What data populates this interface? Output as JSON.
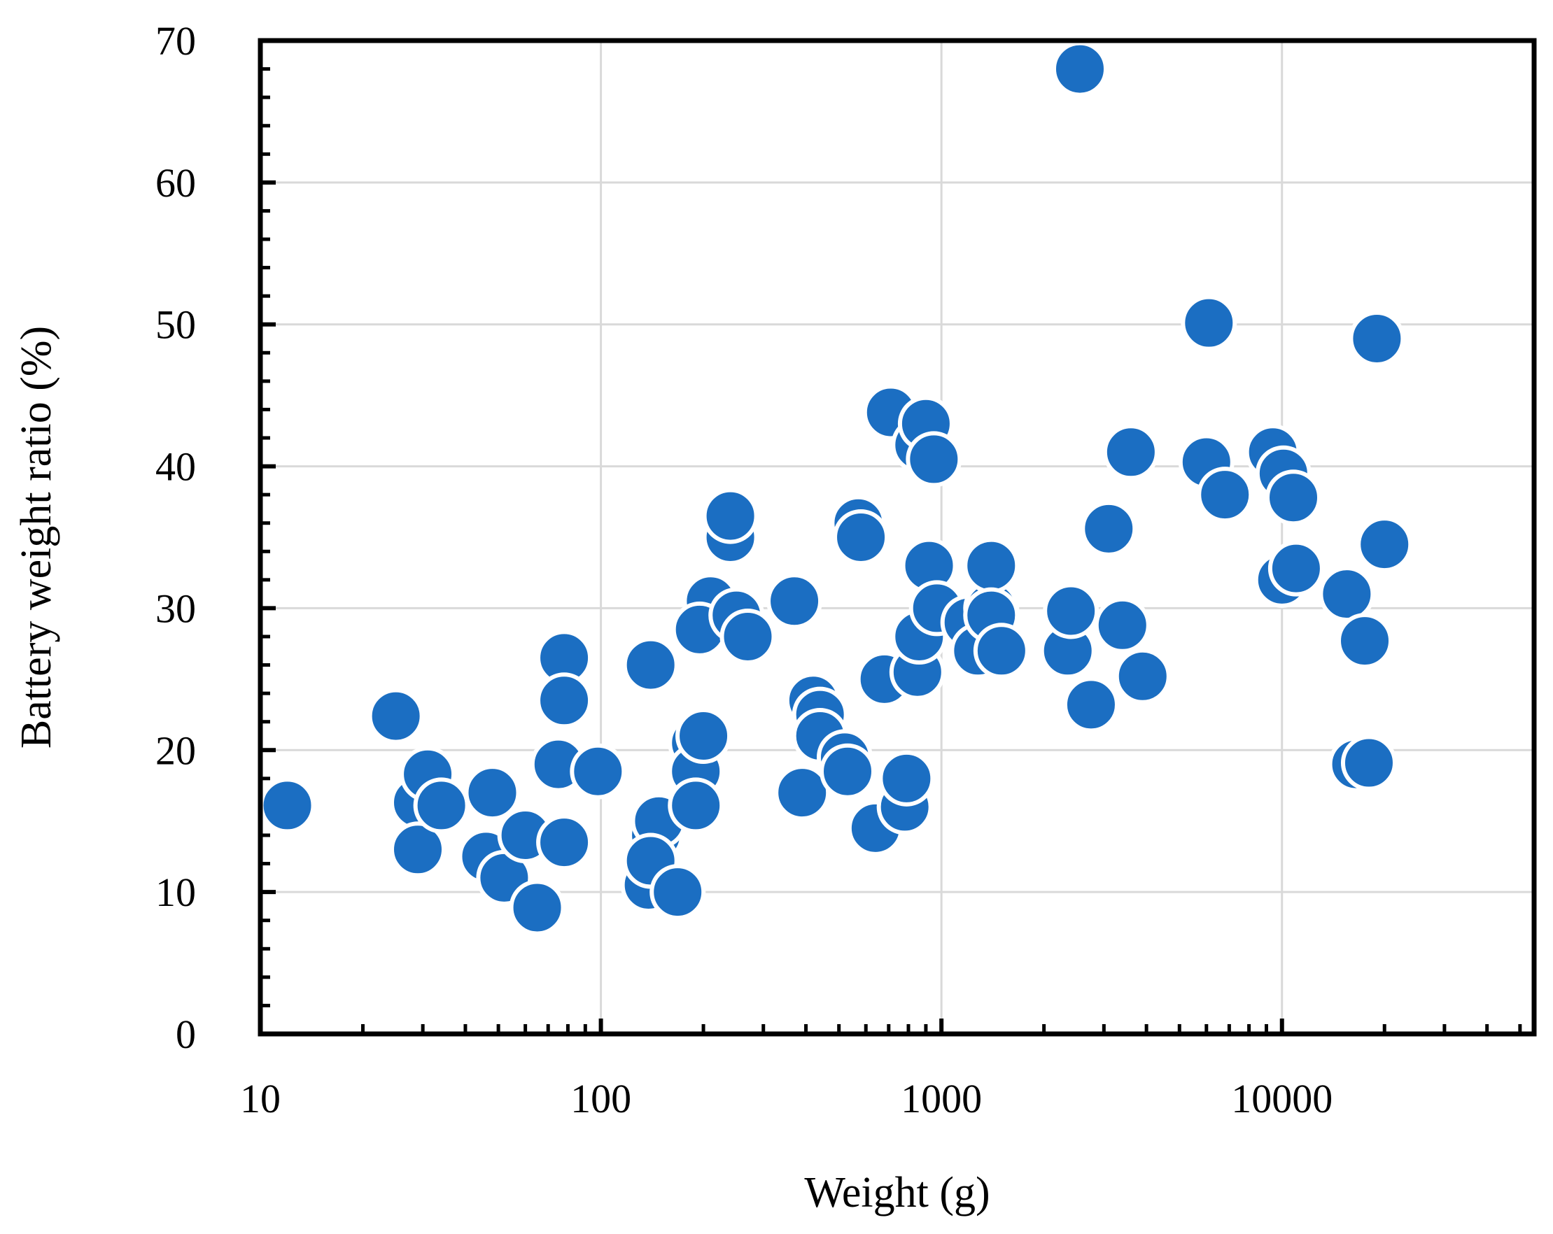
{
  "chart_data": {
    "type": "scatter",
    "title": "",
    "xlabel": "Weight (g)",
    "ylabel": "Battery weight ratio (%)",
    "xscale": "log",
    "xlim": [
      10,
      55000
    ],
    "ylim": [
      0,
      70
    ],
    "grid": true,
    "legend": "none",
    "x_ticks": [
      10,
      100,
      1000,
      10000
    ],
    "x_tick_labels": [
      "10",
      "100",
      "1000",
      "10000"
    ],
    "y_ticks": [
      0,
      10,
      20,
      30,
      40,
      50,
      60,
      70
    ],
    "y_tick_labels": [
      "0",
      "10",
      "20",
      "30",
      "40",
      "50",
      "60",
      "70"
    ],
    "marker_color": "#1B6EC2",
    "series": [
      {
        "name": "Battery weight ratio",
        "points": [
          [
            12,
            16.1
          ],
          [
            25,
            22.4
          ],
          [
            29,
            16.3
          ],
          [
            29,
            13.0
          ],
          [
            31,
            18.3
          ],
          [
            34,
            16.1
          ],
          [
            46,
            12.5
          ],
          [
            48,
            17.0
          ],
          [
            52,
            11.0
          ],
          [
            60,
            14.0
          ],
          [
            65,
            8.9
          ],
          [
            75,
            19.0
          ],
          [
            78,
            26.5
          ],
          [
            78,
            23.5
          ],
          [
            78,
            13.5
          ],
          [
            98,
            18.5
          ],
          [
            138,
            10.5
          ],
          [
            140,
            26.0
          ],
          [
            145,
            14.0
          ],
          [
            148,
            15.0
          ],
          [
            140,
            12.2
          ],
          [
            168,
            10.0
          ],
          [
            190,
            20.5
          ],
          [
            190,
            18.5
          ],
          [
            190,
            16.1
          ],
          [
            200,
            21.0
          ],
          [
            210,
            30.5
          ],
          [
            195,
            28.5
          ],
          [
            240,
            35.0
          ],
          [
            240,
            36.5
          ],
          [
            250,
            29.5
          ],
          [
            270,
            28.0
          ],
          [
            370,
            30.5
          ],
          [
            390,
            17.0
          ],
          [
            420,
            23.5
          ],
          [
            440,
            22.5
          ],
          [
            440,
            21.0
          ],
          [
            520,
            19.5
          ],
          [
            530,
            18.5
          ],
          [
            570,
            36.0
          ],
          [
            580,
            35.0
          ],
          [
            640,
            14.5
          ],
          [
            680,
            25.0
          ],
          [
            710,
            43.8
          ],
          [
            780,
            16.0
          ],
          [
            790,
            18.0
          ],
          [
            850,
            25.5
          ],
          [
            860,
            28.0
          ],
          [
            860,
            41.5
          ],
          [
            900,
            43.0
          ],
          [
            920,
            33.0
          ],
          [
            950,
            40.5
          ],
          [
            970,
            30.0
          ],
          [
            1200,
            29.0
          ],
          [
            1280,
            27.0
          ],
          [
            1400,
            30.0
          ],
          [
            1400,
            33.0
          ],
          [
            1400,
            29.5
          ],
          [
            1500,
            27.0
          ],
          [
            2350,
            27.0
          ],
          [
            2400,
            29.8
          ],
          [
            2550,
            68.0
          ],
          [
            2750,
            23.2
          ],
          [
            3100,
            35.6
          ],
          [
            3400,
            28.8
          ],
          [
            3600,
            41.0
          ],
          [
            3900,
            25.2
          ],
          [
            6000,
            40.3
          ],
          [
            6100,
            50.1
          ],
          [
            6800,
            38.0
          ],
          [
            9400,
            41.0
          ],
          [
            10000,
            32.0
          ],
          [
            10100,
            39.5
          ],
          [
            10800,
            37.8
          ],
          [
            11000,
            32.8
          ],
          [
            15500,
            31.0
          ],
          [
            16500,
            19.0
          ],
          [
            17500,
            27.7
          ],
          [
            18000,
            19.1
          ],
          [
            19000,
            49.0
          ],
          [
            20000,
            34.5
          ]
        ]
      }
    ]
  }
}
